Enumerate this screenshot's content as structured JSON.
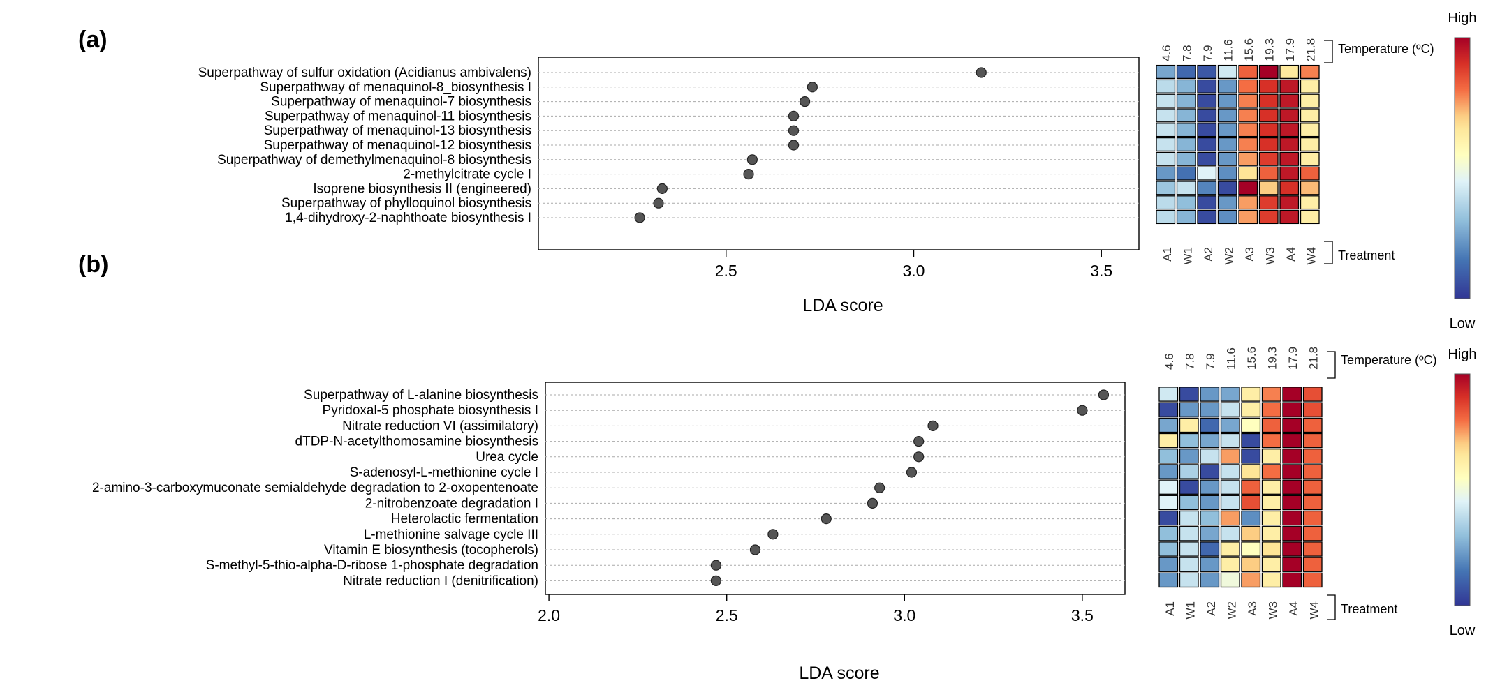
{
  "legend": {
    "high": "High",
    "low": "Low",
    "temperature_label": "Temperature (ºC)",
    "treatment_label": "Treatment"
  },
  "colors": {
    "dot": "#555555",
    "low": "#313695",
    "mid": "#f7f7e6",
    "high": "#a50026"
  },
  "chart_data": [
    {
      "panel": "(a)",
      "type": "scatter",
      "xlabel": "LDA score",
      "xlim": [
        2.0,
        3.6
      ],
      "xticks": [
        "2.5",
        "3.0",
        "3.5"
      ],
      "grid": "horizontal dotted",
      "categories": [
        "Superpathway of sulfur oxidation (Acidianus ambivalens)",
        "Superpathway of menaquinol-8_biosynthesis I",
        "Superpathway of menaquinol-7 biosynthesis",
        "Superpathway of menaquinol-11 biosynthesis",
        "Superpathway of menaquinol-13 biosynthesis",
        "Superpathway of menaquinol-12 biosynthesis",
        "Superpathway of demethylmenaquinol-8 biosynthesis",
        "2-methylcitrate cycle I",
        "Isoprene biosynthesis II (engineered)",
        "Superpathway of phylloquinol biosynthesis",
        "1,4-dihydroxy-2-naphthoate biosynthesis I"
      ],
      "values": [
        3.18,
        2.73,
        2.71,
        2.68,
        2.68,
        2.68,
        2.57,
        2.56,
        2.33,
        2.32,
        2.27
      ],
      "heatmap": {
        "treatments": [
          "A1",
          "W1",
          "A2",
          "W2",
          "A3",
          "W3",
          "A4",
          "W4"
        ],
        "temperatures": [
          "4.6",
          "7.8",
          "7.9",
          "11.6",
          "15.6",
          "19.3",
          "17.9",
          "21.8"
        ],
        "values": [
          [
            0.25,
            0.12,
            0.08,
            0.42,
            0.82,
            1.0,
            0.64,
            0.78
          ],
          [
            0.38,
            0.28,
            0.05,
            0.22,
            0.8,
            0.9,
            0.95,
            0.62
          ],
          [
            0.4,
            0.28,
            0.05,
            0.22,
            0.78,
            0.9,
            0.95,
            0.62
          ],
          [
            0.4,
            0.28,
            0.05,
            0.22,
            0.78,
            0.9,
            0.95,
            0.62
          ],
          [
            0.4,
            0.28,
            0.05,
            0.22,
            0.78,
            0.9,
            0.95,
            0.62
          ],
          [
            0.4,
            0.28,
            0.05,
            0.22,
            0.78,
            0.9,
            0.95,
            0.62
          ],
          [
            0.4,
            0.28,
            0.05,
            0.22,
            0.75,
            0.88,
            0.95,
            0.62
          ],
          [
            0.22,
            0.14,
            0.45,
            0.2,
            0.66,
            0.82,
            0.95,
            0.82
          ],
          [
            0.32,
            0.4,
            0.18,
            0.05,
            1.0,
            0.7,
            0.9,
            0.72
          ],
          [
            0.38,
            0.3,
            0.05,
            0.22,
            0.75,
            0.88,
            0.95,
            0.62
          ],
          [
            0.38,
            0.28,
            0.05,
            0.2,
            0.75,
            0.88,
            0.95,
            0.62
          ]
        ]
      }
    },
    {
      "panel": "(b)",
      "type": "scatter",
      "xlabel": "LDA score",
      "xlim": [
        1.99,
        3.62
      ],
      "xticks": [
        "2.0",
        "2.5",
        "3.0",
        "3.5"
      ],
      "grid": "horizontal dotted",
      "categories": [
        "Superpathway of L-alanine biosynthesis",
        "Pyridoxal-5 phosphate biosynthesis I",
        "Nitrate reduction VI (assimilatory)",
        "dTDP-N-acetylthomosamine biosynthesis",
        "Urea cycle",
        "S-adenosyl-L-methionine cycle I",
        "2-amino-3-carboxymuconate semialdehyde degradation to 2-oxopentenoate",
        "2-nitrobenzoate degradation I",
        "Heterolactic fermentation",
        "L-methionine salvage cycle III",
        "Vitamin E biosynthesis (tocopherols)",
        "S-methyl-5-thio-alpha-D-ribose 1-phosphate degradation",
        "Nitrate reduction I (denitrification)"
      ],
      "values": [
        3.56,
        3.5,
        3.08,
        3.04,
        3.04,
        3.02,
        2.93,
        2.91,
        2.78,
        2.63,
        2.58,
        2.47,
        2.47
      ],
      "heatmap": {
        "treatments": [
          "A1",
          "W1",
          "A2",
          "W2",
          "A3",
          "W3",
          "A4",
          "W4"
        ],
        "temperatures": [
          "4.6",
          "7.8",
          "7.9",
          "11.6",
          "15.6",
          "19.3",
          "17.9",
          "21.8"
        ],
        "values": [
          [
            0.42,
            0.05,
            0.22,
            0.25,
            0.62,
            0.78,
            1.0,
            0.85
          ],
          [
            0.05,
            0.22,
            0.22,
            0.4,
            0.62,
            0.8,
            1.0,
            0.85
          ],
          [
            0.25,
            0.62,
            0.12,
            0.25,
            0.55,
            0.82,
            1.0,
            0.82
          ],
          [
            0.62,
            0.3,
            0.25,
            0.4,
            0.05,
            0.8,
            1.0,
            0.82
          ],
          [
            0.3,
            0.22,
            0.4,
            0.75,
            0.05,
            0.62,
            1.0,
            0.82
          ],
          [
            0.22,
            0.35,
            0.05,
            0.4,
            0.66,
            0.8,
            1.0,
            0.82
          ],
          [
            0.45,
            0.05,
            0.22,
            0.4,
            0.82,
            0.62,
            1.0,
            0.82
          ],
          [
            0.45,
            0.3,
            0.22,
            0.4,
            0.85,
            0.62,
            1.0,
            0.82
          ],
          [
            0.05,
            0.4,
            0.3,
            0.75,
            0.2,
            0.62,
            1.0,
            0.82
          ],
          [
            0.3,
            0.4,
            0.25,
            0.4,
            0.7,
            0.62,
            1.0,
            0.82
          ],
          [
            0.3,
            0.4,
            0.12,
            0.62,
            0.55,
            0.66,
            1.0,
            0.82
          ],
          [
            0.22,
            0.4,
            0.22,
            0.62,
            0.7,
            0.62,
            1.0,
            0.82
          ],
          [
            0.22,
            0.4,
            0.22,
            0.5,
            0.75,
            0.62,
            1.0,
            0.82
          ]
        ]
      }
    }
  ]
}
